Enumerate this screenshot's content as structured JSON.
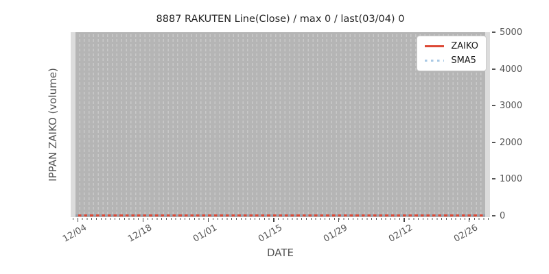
{
  "title": "8887 RAKUTEN Line(Close) / max 0 / last(03/04) 0",
  "xlabel": "DATE",
  "ylabel": "IPPAN ZAIKO (volume)",
  "legend": {
    "position": "upper-right",
    "items": [
      {
        "label": "ZAIKO",
        "style": "solid",
        "color": "#dc4835"
      },
      {
        "label": "SMA5",
        "style": "dotted",
        "color": "#a9c9e5"
      }
    ]
  },
  "y_axis": {
    "side": "right",
    "tick_labels": [
      "0",
      "1000",
      "2000",
      "3000",
      "4000",
      "5000"
    ],
    "range": [
      0,
      5000
    ]
  },
  "x_axis": {
    "tick_labels": [
      "12/04",
      "12/18",
      "01/01",
      "01/15",
      "01/29",
      "02/12",
      "02/26"
    ],
    "tick_positions_pct": [
      1.6,
      17.2,
      32.7,
      48.3,
      63.8,
      79.4,
      94.9
    ],
    "minor_ticks": "one per trading day"
  },
  "colors": {
    "plot_background": "#b5b5b5",
    "grid_dash": "#c9c9c9",
    "edge_strip": "#dcdcdc",
    "zaiko_line": "#dc4835",
    "sma5_line": "#a9c9e5",
    "text": "#555555",
    "title_text": "#262626"
  },
  "chart_data": {
    "type": "line",
    "title": "8887 RAKUTEN Line(Close) / max 0 / last(03/04) 0",
    "xlabel": "DATE",
    "ylabel": "IPPAN ZAIKO (volume)",
    "x_tick_labels": [
      "12/04",
      "12/18",
      "01/01",
      "01/15",
      "01/29",
      "02/12",
      "02/26"
    ],
    "ylim": [
      0,
      5000
    ],
    "y_ticks": [
      0,
      1000,
      2000,
      3000,
      4000,
      5000
    ],
    "grid": "dense vertical dashed gridlines, one per day",
    "legend_position": "upper right",
    "series": [
      {
        "name": "ZAIKO",
        "style": "solid",
        "color": "#dc4835",
        "constant_value": 0,
        "values_note": "flat at 0 for every date from 12/04 through 03/04 (max 0, last 03/04 = 0)"
      },
      {
        "name": "SMA5",
        "style": "dotted",
        "color": "#a9c9e5",
        "constant_value": 0,
        "values_note": "flat at 0 for every date, overlaps ZAIKO line"
      }
    ]
  }
}
